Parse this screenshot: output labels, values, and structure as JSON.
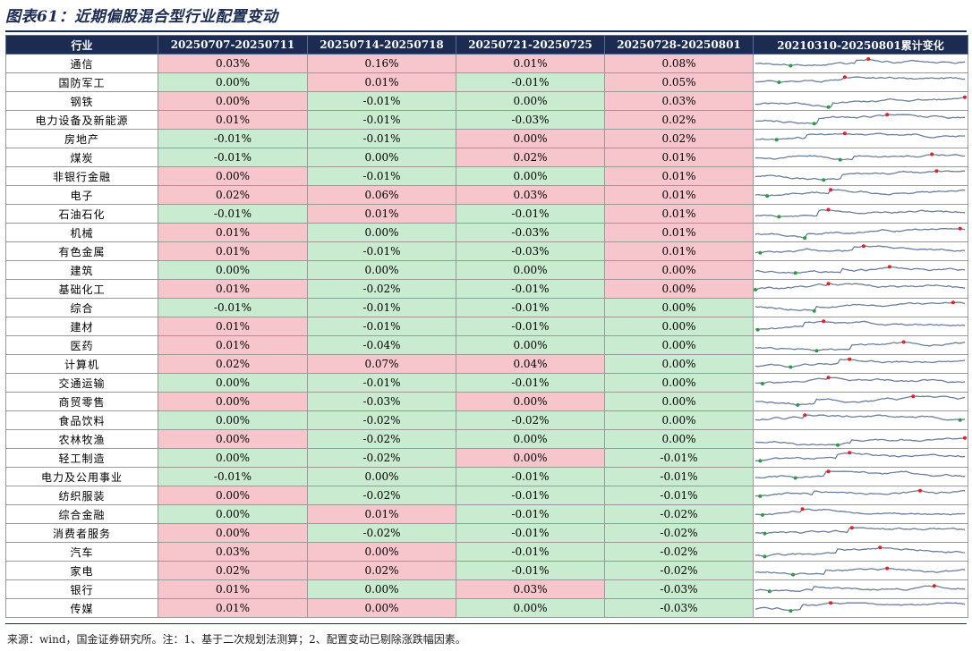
{
  "title": "图表61：近期偏股混合型行业配置变动",
  "headers": [
    "行业",
    "20250707-20250711",
    "20250714-20250718",
    "20250721-20250725",
    "20250728-20250801",
    "20210310-20250801累计变化"
  ],
  "colors": {
    "header_bg": "#1b2b52",
    "positive_bg": "#f7c6cd",
    "negative_bg": "#c9ecd0",
    "line": "#6b7f9a",
    "max_marker": "#e0202a",
    "min_marker": "#2e9a48"
  },
  "rows": [
    {
      "industry": "通信",
      "values": [
        "0.03%",
        "0.16%",
        "0.01%",
        "0.08%"
      ],
      "signs": [
        "pos",
        "pos",
        "pos",
        "pos"
      ]
    },
    {
      "industry": "国防军工",
      "values": [
        "0.00%",
        "0.01%",
        "-0.01%",
        "0.05%"
      ],
      "signs": [
        "neg",
        "pos",
        "neg",
        "pos"
      ]
    },
    {
      "industry": "钢铁",
      "values": [
        "0.00%",
        "-0.01%",
        "0.00%",
        "0.03%"
      ],
      "signs": [
        "pos",
        "neg",
        "neg",
        "pos"
      ]
    },
    {
      "industry": "电力设备及新能源",
      "values": [
        "0.01%",
        "-0.01%",
        "-0.03%",
        "0.02%"
      ],
      "signs": [
        "pos",
        "neg",
        "neg",
        "pos"
      ]
    },
    {
      "industry": "房地产",
      "values": [
        "-0.01%",
        "-0.01%",
        "0.00%",
        "0.02%"
      ],
      "signs": [
        "neg",
        "neg",
        "pos",
        "pos"
      ]
    },
    {
      "industry": "煤炭",
      "values": [
        "-0.01%",
        "0.00%",
        "0.02%",
        "0.01%"
      ],
      "signs": [
        "neg",
        "neg",
        "pos",
        "pos"
      ]
    },
    {
      "industry": "非银行金融",
      "values": [
        "0.00%",
        "-0.01%",
        "0.00%",
        "0.01%"
      ],
      "signs": [
        "pos",
        "neg",
        "neg",
        "pos"
      ]
    },
    {
      "industry": "电子",
      "values": [
        "0.02%",
        "0.06%",
        "0.03%",
        "0.01%"
      ],
      "signs": [
        "pos",
        "pos",
        "pos",
        "pos"
      ]
    },
    {
      "industry": "石油石化",
      "values": [
        "-0.01%",
        "0.01%",
        "-0.01%",
        "0.01%"
      ],
      "signs": [
        "neg",
        "pos",
        "neg",
        "pos"
      ]
    },
    {
      "industry": "机械",
      "values": [
        "0.01%",
        "0.00%",
        "-0.03%",
        "0.01%"
      ],
      "signs": [
        "pos",
        "neg",
        "neg",
        "pos"
      ]
    },
    {
      "industry": "有色金属",
      "values": [
        "0.01%",
        "-0.01%",
        "-0.03%",
        "0.01%"
      ],
      "signs": [
        "pos",
        "neg",
        "neg",
        "pos"
      ]
    },
    {
      "industry": "建筑",
      "values": [
        "0.00%",
        "0.00%",
        "0.00%",
        "0.00%"
      ],
      "signs": [
        "neg",
        "neg",
        "neg",
        "pos"
      ]
    },
    {
      "industry": "基础化工",
      "values": [
        "0.01%",
        "-0.02%",
        "-0.01%",
        "0.00%"
      ],
      "signs": [
        "pos",
        "neg",
        "neg",
        "pos"
      ]
    },
    {
      "industry": "综合",
      "values": [
        "-0.01%",
        "-0.01%",
        "-0.01%",
        "0.00%"
      ],
      "signs": [
        "neg",
        "neg",
        "neg",
        "neg"
      ]
    },
    {
      "industry": "建材",
      "values": [
        "0.01%",
        "-0.01%",
        "-0.01%",
        "0.00%"
      ],
      "signs": [
        "pos",
        "neg",
        "neg",
        "neg"
      ]
    },
    {
      "industry": "医药",
      "values": [
        "0.01%",
        "-0.04%",
        "0.00%",
        "0.00%"
      ],
      "signs": [
        "pos",
        "neg",
        "neg",
        "neg"
      ]
    },
    {
      "industry": "计算机",
      "values": [
        "0.02%",
        "0.07%",
        "0.04%",
        "0.00%"
      ],
      "signs": [
        "pos",
        "pos",
        "pos",
        "neg"
      ]
    },
    {
      "industry": "交通运输",
      "values": [
        "0.00%",
        "-0.01%",
        "-0.01%",
        "0.00%"
      ],
      "signs": [
        "neg",
        "neg",
        "neg",
        "neg"
      ]
    },
    {
      "industry": "商贸零售",
      "values": [
        "0.00%",
        "-0.03%",
        "0.00%",
        "0.00%"
      ],
      "signs": [
        "pos",
        "neg",
        "pos",
        "neg"
      ]
    },
    {
      "industry": "食品饮料",
      "values": [
        "0.00%",
        "-0.02%",
        "-0.02%",
        "0.00%"
      ],
      "signs": [
        "neg",
        "neg",
        "neg",
        "neg"
      ]
    },
    {
      "industry": "农林牧渔",
      "values": [
        "0.00%",
        "-0.02%",
        "0.00%",
        "0.00%"
      ],
      "signs": [
        "pos",
        "neg",
        "neg",
        "neg"
      ]
    },
    {
      "industry": "轻工制造",
      "values": [
        "0.00%",
        "-0.02%",
        "0.00%",
        "-0.01%"
      ],
      "signs": [
        "neg",
        "neg",
        "pos",
        "neg"
      ]
    },
    {
      "industry": "电力及公用事业",
      "values": [
        "-0.01%",
        "0.00%",
        "-0.01%",
        "-0.01%"
      ],
      "signs": [
        "neg",
        "neg",
        "neg",
        "neg"
      ]
    },
    {
      "industry": "纺织服装",
      "values": [
        "0.00%",
        "-0.02%",
        "-0.01%",
        "-0.01%"
      ],
      "signs": [
        "pos",
        "neg",
        "neg",
        "neg"
      ]
    },
    {
      "industry": "综合金融",
      "values": [
        "0.00%",
        "0.01%",
        "-0.01%",
        "-0.02%"
      ],
      "signs": [
        "neg",
        "pos",
        "neg",
        "neg"
      ]
    },
    {
      "industry": "消费者服务",
      "values": [
        "0.00%",
        "-0.02%",
        "-0.01%",
        "-0.02%"
      ],
      "signs": [
        "pos",
        "neg",
        "neg",
        "neg"
      ]
    },
    {
      "industry": "汽车",
      "values": [
        "0.03%",
        "0.00%",
        "-0.01%",
        "-0.02%"
      ],
      "signs": [
        "pos",
        "pos",
        "neg",
        "neg"
      ]
    },
    {
      "industry": "家电",
      "values": [
        "0.02%",
        "0.02%",
        "-0.01%",
        "-0.02%"
      ],
      "signs": [
        "pos",
        "pos",
        "neg",
        "neg"
      ]
    },
    {
      "industry": "银行",
      "values": [
        "0.01%",
        "0.00%",
        "0.03%",
        "-0.03%"
      ],
      "signs": [
        "pos",
        "neg",
        "pos",
        "neg"
      ]
    },
    {
      "industry": "传媒",
      "values": [
        "0.01%",
        "0.00%",
        "0.00%",
        "-0.03%"
      ],
      "signs": [
        "pos",
        "pos",
        "neg",
        "neg"
      ]
    }
  ],
  "source": "来源：wind，国金证券研究所。注：1、基于二次规划法测算；2、配置变动已剔除涨跌幅因素。"
}
